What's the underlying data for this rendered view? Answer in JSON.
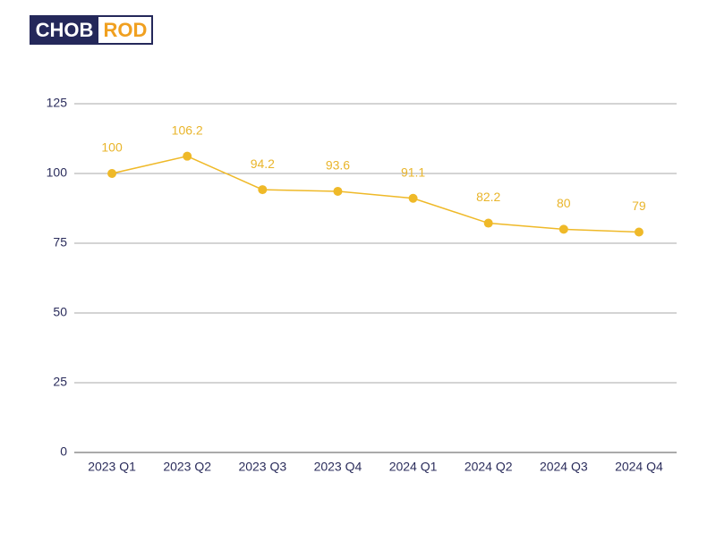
{
  "logo": {
    "left": "CHOB",
    "right": "ROD"
  },
  "chart_data": {
    "type": "line",
    "categories": [
      "2023 Q1",
      "2023 Q2",
      "2023 Q3",
      "2023 Q4",
      "2024 Q1",
      "2024 Q2",
      "2024 Q3",
      "2024 Q4"
    ],
    "values": [
      100,
      106.2,
      94.2,
      93.6,
      91.1,
      82.2,
      80,
      79
    ],
    "color": "#efb928",
    "ylim": [
      0,
      125
    ],
    "yticks": [
      0,
      25,
      50,
      75,
      100,
      125
    ],
    "grid": true
  }
}
